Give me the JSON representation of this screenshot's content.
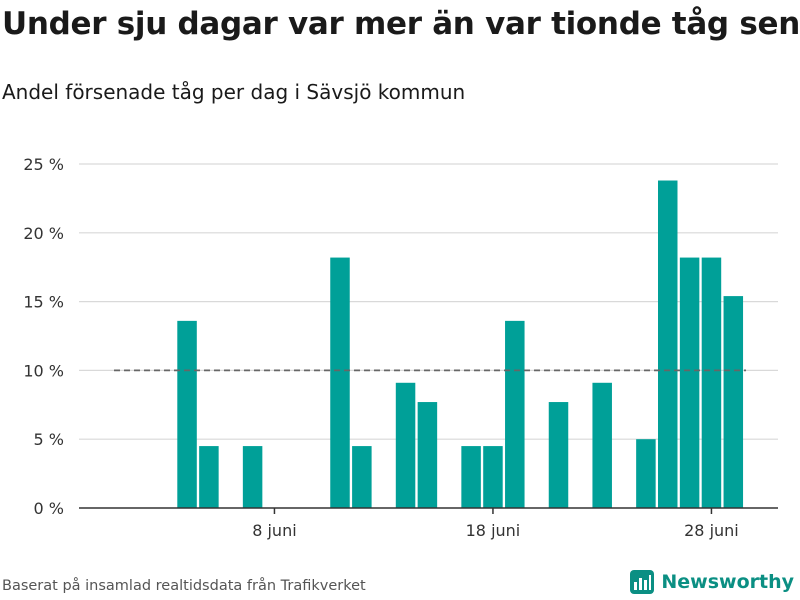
{
  "title": "Under sju dagar var mer än var tionde tåg sent",
  "subtitle": "Andel försenade tåg per dag i Sävsjö kommun",
  "footer": {
    "source_text": "Baserat på insamlad realtidsdata från Trafikverket",
    "brand_name": "Newsworthy"
  },
  "colors": {
    "bar": "#00a098",
    "reference_line": "#666666",
    "grid": "#d9d9d9",
    "brand": "#0b8f83"
  },
  "chart_data": {
    "type": "bar",
    "title": "Under sju dagar var mer än var tionde tåg sent",
    "subtitle": "Andel försenade tåg per dag i Sävsjö kommun",
    "xlabel": "",
    "ylabel": "",
    "unit": "%",
    "ylim": [
      0,
      25
    ],
    "yticks": [
      0,
      5,
      10,
      15,
      20,
      25
    ],
    "ytick_labels": [
      "0 %",
      "5 %",
      "10 %",
      "15 %",
      "20 %",
      "25 %"
    ],
    "grid": true,
    "reference_line": 10,
    "x_start_day": 1,
    "xtick_days": [
      8,
      18,
      28
    ],
    "xtick_labels": [
      "8 juni",
      "18 juni",
      "28 juni"
    ],
    "series": [
      {
        "days": [
          1,
          2,
          3,
          4,
          5,
          6,
          7,
          8,
          9,
          10,
          11,
          12,
          13,
          14,
          15,
          16,
          17,
          18,
          19,
          20,
          21,
          22,
          23,
          24,
          25,
          26,
          27,
          28,
          29,
          30
        ],
        "values": [
          0,
          0,
          0,
          13.6,
          4.5,
          0,
          4.5,
          0,
          0,
          0,
          18.2,
          4.5,
          0,
          9.1,
          7.7,
          0,
          4.5,
          4.5,
          13.6,
          0,
          7.7,
          0,
          9.1,
          0,
          5.0,
          23.8,
          18.2,
          18.2,
          15.4,
          0
        ]
      }
    ]
  }
}
